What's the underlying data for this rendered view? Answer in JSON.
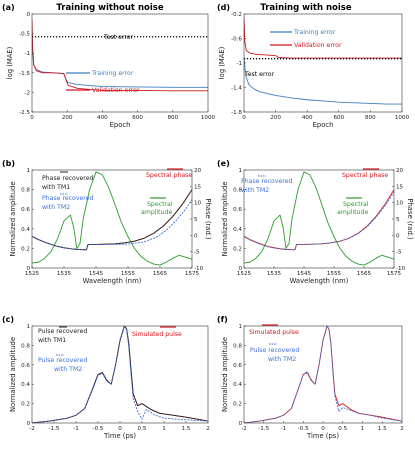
{
  "chart_data": [
    {
      "id": "a",
      "panel_label": "(a)",
      "title": "Training without noise",
      "type": "line",
      "xlabel": "Epoch",
      "ylabel": "log (MAE)",
      "xlim": [
        0,
        1000
      ],
      "ylim": [
        -2.5,
        0
      ],
      "xticks": [
        "0",
        "200",
        "400",
        "600",
        "800",
        "1000"
      ],
      "yticks": [
        "-2.5",
        "-2",
        "-1.5",
        "-1",
        "-0.5",
        "0"
      ],
      "annotations": [
        {
          "text": "Test error",
          "x": 480,
          "y": -0.45
        }
      ],
      "legend": [
        "Training error",
        "Validation error"
      ],
      "series": [
        {
          "name": "Training error",
          "color": "#3d7fc1",
          "x": [
            0,
            3,
            10,
            25,
            60,
            120,
            180,
            195,
            205,
            260,
            400,
            600,
            800,
            1000
          ],
          "y": [
            -0.3,
            -0.9,
            -1.3,
            -1.42,
            -1.48,
            -1.5,
            -1.52,
            -1.68,
            -1.75,
            -1.8,
            -1.85,
            -1.86,
            -1.87,
            -1.87
          ]
        },
        {
          "name": "Validation error",
          "color": "#d0161c",
          "x": [
            0,
            3,
            10,
            25,
            60,
            120,
            180,
            195,
            205,
            260,
            400,
            600,
            800,
            1000
          ],
          "y": [
            -0.15,
            -0.8,
            -1.3,
            -1.45,
            -1.5,
            -1.5,
            -1.52,
            -1.7,
            -1.82,
            -1.9,
            -1.95,
            -1.95,
            -1.96,
            -1.96
          ]
        },
        {
          "name": "Test error",
          "color": "#000000",
          "style": "dotted",
          "x": [
            0,
            1000
          ],
          "y": [
            -0.58,
            -0.58
          ]
        }
      ]
    },
    {
      "id": "d",
      "panel_label": "(d)",
      "title": "Training with noise",
      "type": "line",
      "xlabel": "Epoch",
      "ylabel": "log (MAE)",
      "xlim": [
        0,
        1000
      ],
      "ylim": [
        -1.8,
        -0.2
      ],
      "xticks": [
        "0",
        "200",
        "400",
        "600",
        "800",
        "1000"
      ],
      "yticks": [
        "-1.8",
        "-1.4",
        "-1",
        "-0.6",
        "-0.2"
      ],
      "annotations": [
        {
          "text": "Test error",
          "x": 90,
          "y": -1.02
        }
      ],
      "legend": [
        "Training error",
        "Validation error"
      ],
      "series": [
        {
          "name": "Training error",
          "color": "#3d7fc1",
          "x": [
            0,
            10,
            30,
            60,
            100,
            150,
            200,
            300,
            400,
            500,
            600,
            700,
            800,
            900,
            1000
          ],
          "y": [
            -0.9,
            -1.2,
            -1.35,
            -1.42,
            -1.47,
            -1.5,
            -1.53,
            -1.57,
            -1.6,
            -1.62,
            -1.64,
            -1.65,
            -1.66,
            -1.67,
            -1.67
          ]
        },
        {
          "name": "Validation error",
          "color": "#d0161c",
          "x": [
            0,
            5,
            15,
            40,
            80,
            150,
            200,
            220,
            300,
            500,
            700,
            1000
          ],
          "y": [
            -0.25,
            -0.65,
            -0.8,
            -0.84,
            -0.86,
            -0.87,
            -0.88,
            -0.91,
            -0.92,
            -0.92,
            -0.92,
            -0.92
          ]
        },
        {
          "name": "Test error",
          "color": "#000000",
          "style": "dotted",
          "x": [
            0,
            1000
          ],
          "y": [
            -0.93,
            -0.93
          ]
        }
      ]
    },
    {
      "id": "b",
      "panel_label": "(b)",
      "type": "line",
      "xlabel": "Wavelength (nm)",
      "ylabel": "Normalized amplitude",
      "ylabel_right": "Phase (rad.)",
      "xlim": [
        1525,
        1575
      ],
      "ylim": [
        0,
        1
      ],
      "ylim_right": [
        -10,
        20
      ],
      "xticks": [
        "1525",
        "1535",
        "1545",
        "1555",
        "1565",
        "1575"
      ],
      "yticks": [
        "0",
        "0.2",
        "0.4",
        "0.6",
        "0.8",
        "1"
      ],
      "yticks_right": [
        "-10",
        "-5",
        "0",
        "5",
        "10",
        "15",
        "20"
      ],
      "legend": [
        "Phase recovered with TM1",
        "Phase recovered with TM2",
        "Spectral phase",
        "Spectral amplitude"
      ],
      "series": [
        {
          "name": "Spectral amplitude",
          "axis": "left",
          "color": "#2a9d2a",
          "x": [
            1525,
            1527,
            1529,
            1531,
            1533,
            1535,
            1537,
            1538,
            1539,
            1540,
            1541,
            1543,
            1545,
            1547,
            1549,
            1551,
            1553,
            1555,
            1557,
            1559,
            1561,
            1563,
            1565,
            1567,
            1569,
            1571,
            1573,
            1575
          ],
          "y": [
            0.05,
            0.06,
            0.1,
            0.17,
            0.3,
            0.48,
            0.54,
            0.42,
            0.2,
            0.25,
            0.5,
            0.8,
            0.98,
            0.95,
            0.82,
            0.64,
            0.46,
            0.32,
            0.2,
            0.12,
            0.07,
            0.04,
            0.03,
            0.06,
            0.1,
            0.13,
            0.11,
            0.09
          ]
        },
        {
          "name": "Spectral phase",
          "axis": "right",
          "color": "#d0161c",
          "x": [
            1525,
            1527,
            1529,
            1531,
            1533,
            1535,
            1537,
            1539,
            1541,
            1542,
            1542.5,
            1545,
            1548,
            1551,
            1554,
            1557,
            1560,
            1563,
            1566,
            1569,
            1572,
            1575
          ],
          "y": [
            -0.3,
            -1.3,
            -2.1,
            -2.8,
            -3.4,
            -3.8,
            -4.1,
            -4.3,
            -4.4,
            -4.4,
            -2.8,
            -2.8,
            -2.7,
            -2.6,
            -2.3,
            -1.8,
            -0.9,
            0.6,
            2.8,
            5.8,
            9.5,
            14.0
          ]
        },
        {
          "name": "Phase recovered with TM1",
          "axis": "right",
          "color": "#222222",
          "x": [
            1525,
            1527,
            1529,
            1531,
            1533,
            1535,
            1537,
            1539,
            1541,
            1542,
            1542.5,
            1545,
            1548,
            1551,
            1554,
            1557,
            1560,
            1563,
            1566,
            1569,
            1572,
            1575
          ],
          "y": [
            -0.3,
            -1.3,
            -2.1,
            -2.8,
            -3.4,
            -3.8,
            -4.1,
            -4.3,
            -4.4,
            -4.4,
            -2.8,
            -2.8,
            -2.7,
            -2.6,
            -2.3,
            -1.8,
            -0.9,
            0.6,
            2.8,
            5.8,
            9.5,
            14.0
          ]
        },
        {
          "name": "Phase recovered with TM2",
          "axis": "right",
          "color": "#3d6fd8",
          "style": "dashed",
          "x": [
            1525,
            1529,
            1533,
            1537,
            1541,
            1542,
            1542.5,
            1545,
            1550,
            1555,
            1560,
            1564,
            1567,
            1570,
            1573,
            1575
          ],
          "y": [
            -0.3,
            -2.1,
            -3.4,
            -4.1,
            -4.4,
            -4.4,
            -2.8,
            -2.8,
            -2.8,
            -2.7,
            -2.0,
            -0.5,
            1.5,
            4.5,
            8.0,
            11.0
          ]
        }
      ]
    },
    {
      "id": "e",
      "panel_label": "(e)",
      "type": "line",
      "xlabel": "Wavelength (nm)",
      "ylabel": "Normalized amplitude",
      "ylabel_right": "Phase (rad.)",
      "xlim": [
        1525,
        1575
      ],
      "ylim": [
        0,
        1
      ],
      "ylim_right": [
        -10,
        20
      ],
      "xticks": [
        "1525",
        "1535",
        "1545",
        "1555",
        "1565",
        "1575"
      ],
      "yticks": [
        "0",
        "0.2",
        "0.4",
        "0.6",
        "0.8",
        "1"
      ],
      "yticks_right": [
        "-10",
        "-5",
        "0",
        "5",
        "10",
        "15",
        "20"
      ],
      "legend": [
        "Phase recovered with TM2",
        "Spectral phase",
        "Spectral amplitude"
      ],
      "series": [
        {
          "name": "Spectral amplitude",
          "axis": "left",
          "color": "#2a9d2a",
          "x": [
            1525,
            1527,
            1529,
            1531,
            1533,
            1535,
            1537,
            1538,
            1539,
            1540,
            1541,
            1543,
            1545,
            1547,
            1549,
            1551,
            1553,
            1555,
            1557,
            1559,
            1561,
            1563,
            1565,
            1567,
            1569,
            1571,
            1573,
            1575
          ],
          "y": [
            0.05,
            0.06,
            0.1,
            0.17,
            0.3,
            0.48,
            0.54,
            0.42,
            0.2,
            0.25,
            0.5,
            0.8,
            0.98,
            0.95,
            0.82,
            0.64,
            0.46,
            0.32,
            0.2,
            0.12,
            0.07,
            0.04,
            0.03,
            0.06,
            0.1,
            0.13,
            0.11,
            0.09
          ]
        },
        {
          "name": "Spectral phase",
          "axis": "right",
          "color": "#d0161c",
          "x": [
            1525,
            1527,
            1529,
            1531,
            1533,
            1535,
            1537,
            1539,
            1541,
            1542,
            1542.5,
            1545,
            1548,
            1551,
            1554,
            1557,
            1560,
            1563,
            1566,
            1569,
            1572,
            1575
          ],
          "y": [
            -0.3,
            -1.3,
            -2.1,
            -2.8,
            -3.4,
            -3.8,
            -4.1,
            -4.3,
            -4.4,
            -4.4,
            -2.8,
            -2.8,
            -2.7,
            -2.6,
            -2.3,
            -1.8,
            -0.9,
            0.6,
            2.8,
            5.8,
            9.5,
            14.0
          ]
        },
        {
          "name": "Phase recovered with TM2",
          "axis": "right",
          "color": "#3d6fd8",
          "style": "dashed",
          "x": [
            1525,
            1527,
            1529,
            1531,
            1533,
            1535,
            1537,
            1539,
            1541,
            1542,
            1542.5,
            1545,
            1548,
            1551,
            1554,
            1557,
            1560,
            1563,
            1566,
            1569,
            1572,
            1575
          ],
          "y": [
            -0.4,
            -1.4,
            -2.2,
            -2.9,
            -3.5,
            -3.9,
            -4.2,
            -4.3,
            -4.4,
            -4.4,
            -2.8,
            -2.8,
            -2.7,
            -2.6,
            -2.3,
            -1.8,
            -0.9,
            0.5,
            2.6,
            5.5,
            9.0,
            13.2
          ]
        }
      ]
    },
    {
      "id": "c",
      "panel_label": "(c)",
      "type": "line",
      "xlabel": "Time (ps)",
      "ylabel": "Normalized amplitude",
      "xlim": [
        -2,
        2
      ],
      "ylim": [
        0,
        1
      ],
      "xticks": [
        "-2",
        "-1.5",
        "-1",
        "-0.5",
        "0",
        "0.5",
        "1",
        "1.5",
        "2"
      ],
      "yticks": [
        "0",
        "0.2",
        "0.4",
        "0.6",
        "0.8",
        "1"
      ],
      "legend": [
        "Pulse recovered with TM1",
        "Simulated pulse",
        "Pulse recovered with TM2"
      ],
      "series": [
        {
          "name": "Simulated pulse",
          "color": "#d0161c",
          "x": [
            -2,
            -1.6,
            -1.2,
            -1.0,
            -0.8,
            -0.6,
            -0.5,
            -0.4,
            -0.3,
            -0.2,
            -0.1,
            0,
            0.1,
            0.15,
            0.2,
            0.25,
            0.3,
            0.4,
            0.5,
            0.7,
            0.9,
            1.2,
            1.5,
            2
          ],
          "y": [
            0.0,
            0.02,
            0.05,
            0.08,
            0.15,
            0.38,
            0.5,
            0.52,
            0.44,
            0.4,
            0.6,
            0.85,
            1.0,
            0.97,
            0.82,
            0.55,
            0.3,
            0.18,
            0.2,
            0.14,
            0.1,
            0.08,
            0.06,
            0.02
          ]
        },
        {
          "name": "Pulse recovered with TM1",
          "color": "#222222",
          "x": [
            -2,
            -1.6,
            -1.2,
            -1.0,
            -0.8,
            -0.6,
            -0.5,
            -0.4,
            -0.3,
            -0.2,
            -0.1,
            0,
            0.1,
            0.15,
            0.2,
            0.25,
            0.3,
            0.4,
            0.5,
            0.7,
            0.9,
            1.2,
            1.5,
            2
          ],
          "y": [
            0.0,
            0.02,
            0.05,
            0.08,
            0.15,
            0.38,
            0.5,
            0.52,
            0.44,
            0.4,
            0.6,
            0.85,
            1.0,
            0.97,
            0.82,
            0.55,
            0.3,
            0.18,
            0.2,
            0.14,
            0.1,
            0.08,
            0.06,
            0.02
          ]
        },
        {
          "name": "Pulse recovered with TM2",
          "color": "#3d6fd8",
          "style": "dashed",
          "x": [
            -2,
            -1.6,
            -1.2,
            -1.0,
            -0.8,
            -0.6,
            -0.5,
            -0.4,
            -0.3,
            -0.2,
            -0.1,
            0,
            0.1,
            0.15,
            0.2,
            0.25,
            0.3,
            0.4,
            0.5,
            0.6,
            0.8,
            1.0,
            1.3,
            1.6,
            2
          ],
          "y": [
            0.0,
            0.02,
            0.05,
            0.08,
            0.15,
            0.37,
            0.49,
            0.51,
            0.43,
            0.4,
            0.6,
            0.86,
            1.0,
            0.96,
            0.78,
            0.5,
            0.25,
            0.12,
            0.04,
            0.14,
            0.08,
            0.05,
            0.04,
            0.03,
            0.02
          ]
        }
      ]
    },
    {
      "id": "f",
      "panel_label": "(f)",
      "type": "line",
      "xlabel": "Time (ps)",
      "ylabel": "Normalized amplitude",
      "xlim": [
        -2,
        2
      ],
      "ylim": [
        0,
        1
      ],
      "xticks": [
        "-2",
        "-1.5",
        "-1",
        "-0.5",
        "0",
        "0.5",
        "1",
        "1.5",
        "2"
      ],
      "yticks": [
        "0",
        "0.2",
        "0.4",
        "0.6",
        "0.8",
        "1"
      ],
      "legend": [
        "Simulated pulse",
        "Pulse recovered with TM2"
      ],
      "series": [
        {
          "name": "Simulated pulse",
          "color": "#d0161c",
          "x": [
            -2,
            -1.6,
            -1.2,
            -1.0,
            -0.8,
            -0.6,
            -0.5,
            -0.4,
            -0.3,
            -0.2,
            -0.1,
            0,
            0.1,
            0.15,
            0.2,
            0.25,
            0.3,
            0.4,
            0.5,
            0.7,
            0.9,
            1.2,
            1.5,
            2
          ],
          "y": [
            0.0,
            0.02,
            0.05,
            0.08,
            0.15,
            0.38,
            0.5,
            0.52,
            0.44,
            0.4,
            0.6,
            0.85,
            1.0,
            0.97,
            0.82,
            0.55,
            0.3,
            0.18,
            0.2,
            0.14,
            0.1,
            0.08,
            0.06,
            0.02
          ]
        },
        {
          "name": "Pulse recovered with TM2",
          "color": "#3d6fd8",
          "style": "dashed",
          "x": [
            -2,
            -1.6,
            -1.2,
            -1.0,
            -0.8,
            -0.6,
            -0.5,
            -0.4,
            -0.3,
            -0.2,
            -0.1,
            0,
            0.1,
            0.15,
            0.2,
            0.25,
            0.3,
            0.4,
            0.5,
            0.7,
            0.9,
            1.2,
            1.5,
            2
          ],
          "y": [
            0.0,
            0.02,
            0.05,
            0.08,
            0.15,
            0.38,
            0.5,
            0.53,
            0.45,
            0.4,
            0.6,
            0.85,
            1.0,
            0.97,
            0.82,
            0.52,
            0.28,
            0.12,
            0.16,
            0.13,
            0.1,
            0.08,
            0.05,
            0.02
          ]
        }
      ]
    }
  ]
}
